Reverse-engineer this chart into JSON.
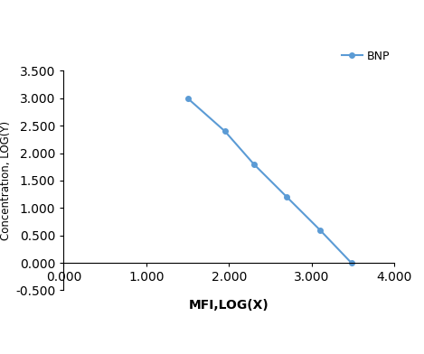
{
  "x": [
    1.5,
    1.95,
    2.3,
    2.7,
    3.1,
    3.48
  ],
  "y": [
    3.0,
    2.4,
    1.8,
    1.2,
    0.6,
    0.0
  ],
  "line_color": "#5b9bd5",
  "marker_color": "#5b9bd5",
  "marker_style": "o",
  "marker_size": 4,
  "line_width": 1.5,
  "legend_label": "BNP",
  "xlabel": "MFI,LOG(X)",
  "ylabel": "Concentration, LOG(Y)",
  "xlim": [
    0.0,
    4.0
  ],
  "ylim": [
    -0.5,
    3.5
  ],
  "xticks": [
    0.0,
    1.0,
    2.0,
    3.0,
    4.0
  ],
  "yticks": [
    -0.5,
    0.0,
    0.5,
    1.0,
    1.5,
    2.0,
    2.5,
    3.0,
    3.5
  ],
  "xtick_labels": [
    "0.000",
    "1.000",
    "2.000",
    "3.000",
    "4.000"
  ],
  "ytick_labels": [
    "-0.500",
    "0.000",
    "0.500",
    "1.000",
    "1.500",
    "2.000",
    "2.500",
    "3.000",
    "3.500"
  ],
  "background_color": "#ffffff",
  "xlabel_fontsize": 10,
  "ylabel_fontsize": 8.5,
  "tick_fontsize": 7.5,
  "legend_fontsize": 9,
  "xlabel_fontweight": "bold"
}
